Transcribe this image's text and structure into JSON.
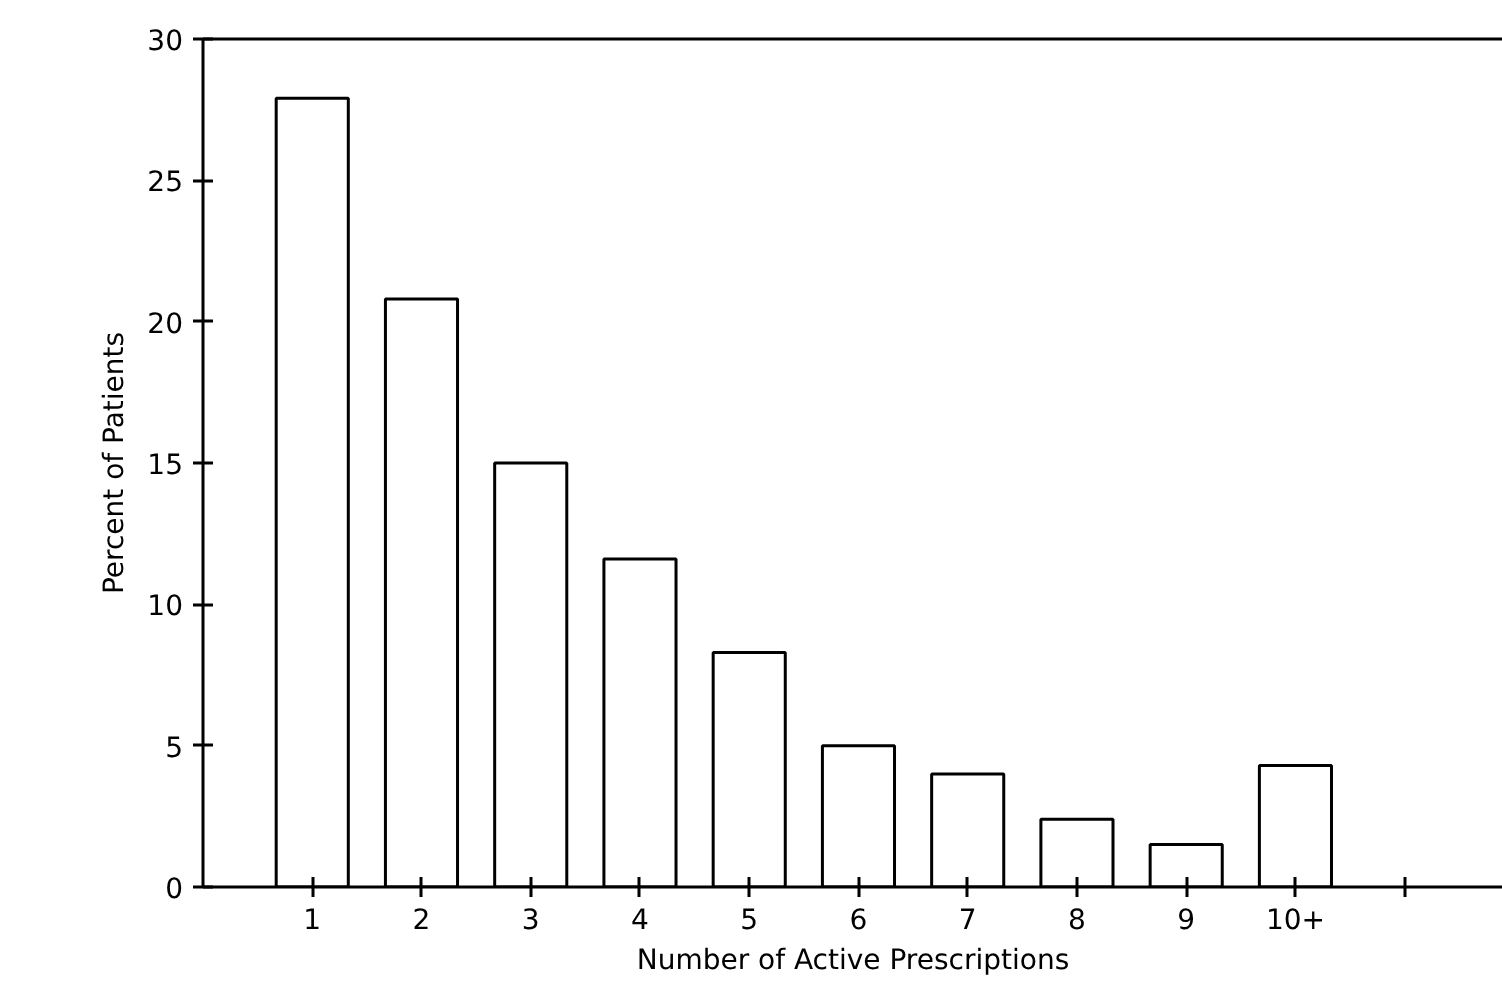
{
  "chart_data": {
    "type": "bar",
    "xlabel": "Number of Active Prescriptions",
    "ylabel": "Percent of Patients",
    "categories": [
      "1",
      "2",
      "3",
      "4",
      "5",
      "6",
      "7",
      "8",
      "9",
      "10+",
      null
    ],
    "values": [
      27.9,
      20.8,
      15.0,
      11.6,
      8.3,
      5.0,
      4.0,
      2.4,
      1.5,
      4.3,
      null
    ],
    "color": "#ffffff",
    "ylim": [
      0,
      30
    ],
    "yticks": [
      0,
      5,
      10,
      15,
      20,
      25,
      30
    ],
    "grid": false
  }
}
